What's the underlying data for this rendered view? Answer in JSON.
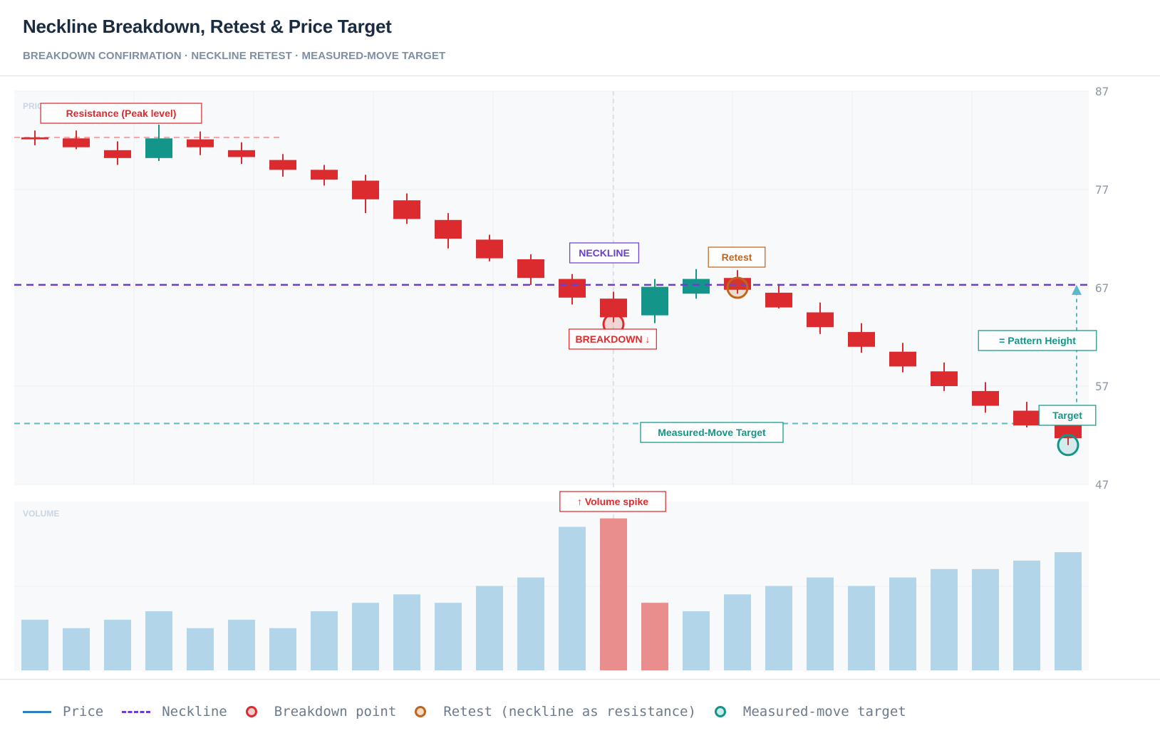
{
  "header": {
    "title": "Neckline Breakdown, Retest & Price Target",
    "subtitle": "BREAKDOWN CONFIRMATION · NECKLINE RETEST · MEASURED-MOVE TARGET"
  },
  "colors": {
    "bear": "#dc2b2f",
    "bull": "#14958a",
    "neckline": "#6a3fd0",
    "target": "#5fb8c8",
    "volume": "#b2d5ea",
    "volume_highlight": "#e98d8d",
    "breakdown": "#dc2b2f",
    "retest": "#c0651b",
    "measured": "#14958a"
  },
  "chart_data": {
    "type": "candlestick",
    "panels": {
      "price": "PRICE",
      "volume": "VOLUME"
    },
    "y_ticks": [
      87,
      77,
      67,
      57,
      47
    ],
    "ylim": [
      47,
      87
    ],
    "candles": [
      {
        "o": 82.3,
        "h": 83.0,
        "l": 81.5,
        "c": 82.1
      },
      {
        "o": 82.2,
        "h": 83.0,
        "l": 81.1,
        "c": 81.3
      },
      {
        "o": 81.0,
        "h": 81.9,
        "l": 79.5,
        "c": 80.2
      },
      {
        "o": 80.2,
        "h": 83.6,
        "l": 79.9,
        "c": 82.2
      },
      {
        "o": 82.1,
        "h": 82.9,
        "l": 80.5,
        "c": 81.3
      },
      {
        "o": 81.0,
        "h": 81.8,
        "l": 79.6,
        "c": 80.3
      },
      {
        "o": 80.0,
        "h": 80.6,
        "l": 78.3,
        "c": 79.0
      },
      {
        "o": 79.0,
        "h": 79.5,
        "l": 77.4,
        "c": 78.0
      },
      {
        "o": 77.9,
        "h": 78.5,
        "l": 74.6,
        "c": 76.0
      },
      {
        "o": 75.9,
        "h": 76.6,
        "l": 73.5,
        "c": 74.0
      },
      {
        "o": 73.9,
        "h": 74.6,
        "l": 71.0,
        "c": 72.0
      },
      {
        "o": 71.9,
        "h": 72.4,
        "l": 69.7,
        "c": 70.0
      },
      {
        "o": 69.9,
        "h": 70.4,
        "l": 67.3,
        "c": 68.0
      },
      {
        "o": 67.9,
        "h": 68.4,
        "l": 65.3,
        "c": 66.0
      },
      {
        "o": 65.9,
        "h": 66.6,
        "l": 63.5,
        "c": 64.0
      },
      {
        "o": 64.2,
        "h": 67.9,
        "l": 63.4,
        "c": 67.1
      },
      {
        "o": 66.4,
        "h": 68.9,
        "l": 65.9,
        "c": 67.9
      },
      {
        "o": 68.0,
        "h": 68.8,
        "l": 66.4,
        "c": 66.8
      },
      {
        "o": 66.5,
        "h": 67.4,
        "l": 64.9,
        "c": 65.0
      },
      {
        "o": 64.5,
        "h": 65.5,
        "l": 62.3,
        "c": 63.0
      },
      {
        "o": 62.5,
        "h": 63.4,
        "l": 60.4,
        "c": 61.0
      },
      {
        "o": 60.5,
        "h": 61.4,
        "l": 58.4,
        "c": 59.0
      },
      {
        "o": 58.5,
        "h": 59.4,
        "l": 56.5,
        "c": 57.0
      },
      {
        "o": 56.5,
        "h": 57.4,
        "l": 54.3,
        "c": 55.0
      },
      {
        "o": 54.5,
        "h": 55.4,
        "l": 52.8,
        "c": 53.0
      },
      {
        "o": 53.5,
        "h": 54.0,
        "l": 51.0,
        "c": 51.7
      }
    ],
    "volume": [
      30,
      25,
      30,
      35,
      25,
      30,
      25,
      35,
      40,
      45,
      40,
      50,
      55,
      85,
      90,
      40,
      35,
      45,
      50,
      55,
      50,
      55,
      60,
      60,
      65,
      70
    ],
    "volume_highlight": [
      14,
      15
    ],
    "neckline": 67.3,
    "resistance": 82.3,
    "target": 53.2,
    "markers": {
      "breakdown": {
        "index": 14,
        "price": 63.3
      },
      "retest": {
        "index": 17,
        "price": 67.0
      },
      "target": {
        "index": 25,
        "price": 51.0
      }
    },
    "annotations": {
      "resistance": "Resistance (Peak level)",
      "neckline": "NECKLINE",
      "retest": "Retest",
      "breakdown": "BREAKDOWN ↓",
      "pattern_height": "= Pattern Height",
      "target": "Target",
      "measured_move": "Measured-Move Target",
      "volume_spike": "↑ Volume spike"
    }
  },
  "legend": {
    "price": "Price",
    "neckline": "Neckline",
    "breakdown": "Breakdown point",
    "retest": "Retest (neckline as resistance)",
    "target": "Measured-move target"
  }
}
